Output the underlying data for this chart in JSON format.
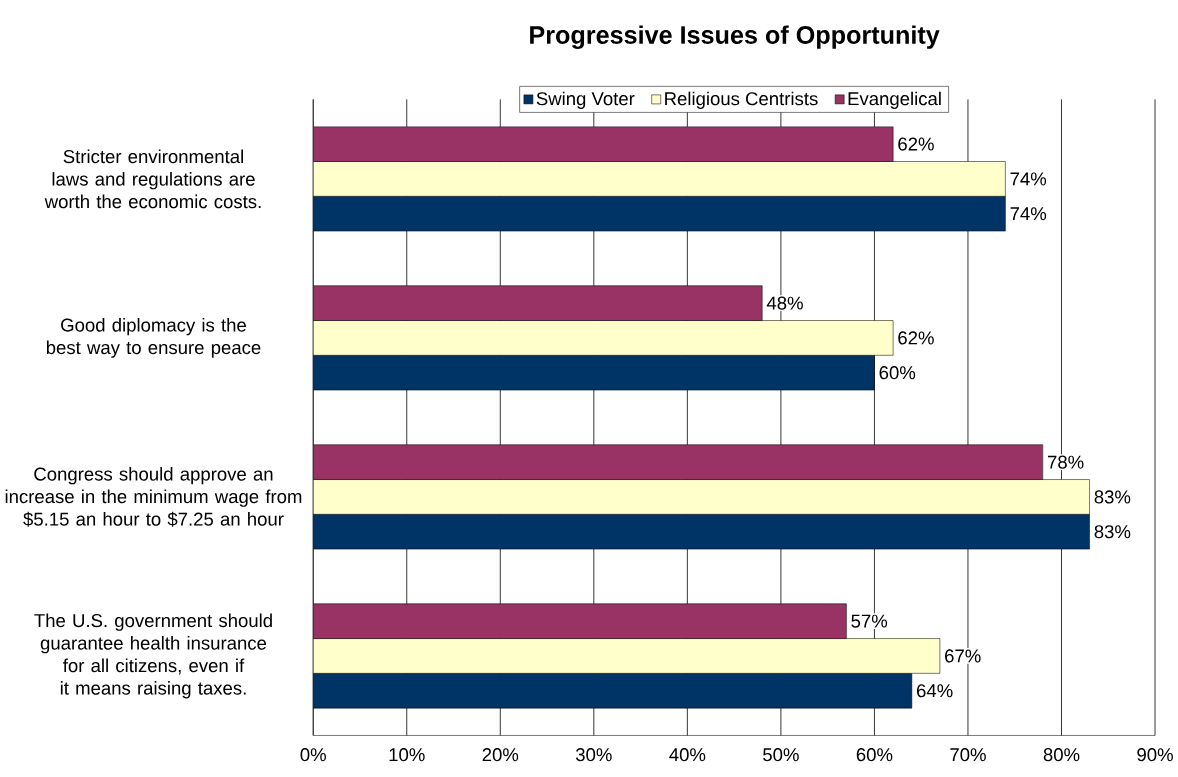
{
  "chart_data": {
    "type": "bar",
    "orientation": "horizontal",
    "title": "Progressive Issues of Opportunity",
    "categories": [
      "Stricter environmental laws and regulations are worth the economic costs.",
      "Good diplomacy is the best way to ensure peace",
      "Congress should approve an increase in the minimum wage from $5.15 an hour to $7.25 an hour",
      "The U.S. government should guarantee health insurance for all citizens, even if it means raising taxes."
    ],
    "series": [
      {
        "name": "Swing Voter",
        "color": "#003366",
        "values": [
          74,
          60,
          83,
          64
        ],
        "value_labels": [
          "74%",
          "60%",
          "83%",
          "64%"
        ]
      },
      {
        "name": "Religious Centrists",
        "color": "#ffffcc",
        "values": [
          74,
          62,
          83,
          67
        ],
        "value_labels": [
          "74%",
          "62%",
          "83%",
          "67%"
        ]
      },
      {
        "name": "Evangelical",
        "color": "#993366",
        "values": [
          62,
          48,
          78,
          57
        ],
        "value_labels": [
          "62%",
          "48%",
          "78%",
          "57%"
        ]
      }
    ],
    "xlim": [
      0,
      90
    ],
    "xticks": [
      {
        "value": 0,
        "label": "0%"
      },
      {
        "value": 10,
        "label": "10%"
      },
      {
        "value": 20,
        "label": "20%"
      },
      {
        "value": 30,
        "label": "30%"
      },
      {
        "value": 40,
        "label": "40%"
      },
      {
        "value": 50,
        "label": "50%"
      },
      {
        "value": 60,
        "label": "60%"
      },
      {
        "value": 70,
        "label": "70%"
      },
      {
        "value": 80,
        "label": "80%"
      },
      {
        "value": 90,
        "label": "90%"
      }
    ],
    "grid": "x",
    "legend": "top"
  }
}
